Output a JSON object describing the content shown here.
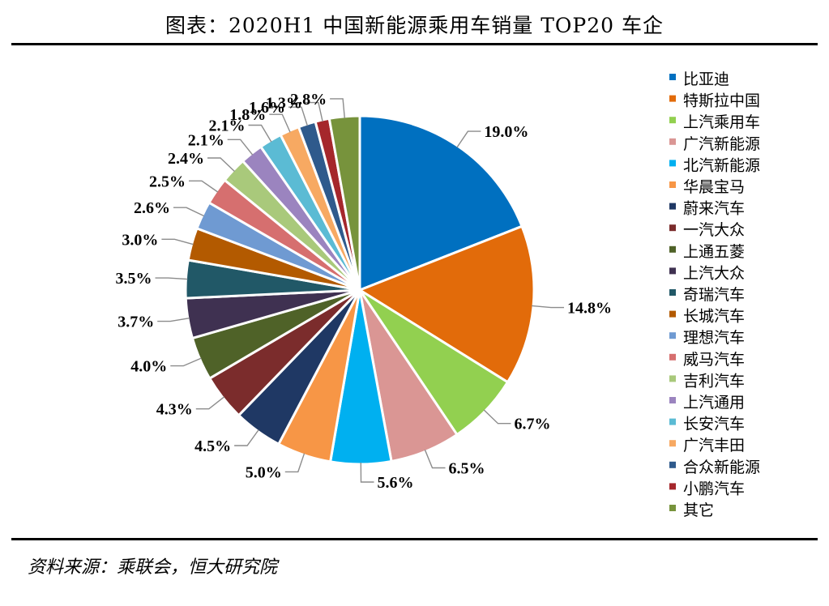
{
  "title": "图表：2020H1 中国新能源乘用车销量 TOP20 车企",
  "source": "资料来源：乘联会，恒大研究院",
  "chart_data": {
    "type": "pie",
    "title": "图表：2020H1 中国新能源乘用车销量 TOP20 车企",
    "unit": "%",
    "legend_position": "right",
    "slices": [
      {
        "name": "比亚迪",
        "value": 19.0,
        "label": "19.0%",
        "color": "#0070C0"
      },
      {
        "name": "特斯拉中国",
        "value": 14.8,
        "label": "14.8%",
        "color": "#E26B0A"
      },
      {
        "name": "上汽乘用车",
        "value": 6.7,
        "label": "6.7%",
        "color": "#92D050"
      },
      {
        "name": "广汽新能源",
        "value": 6.5,
        "label": "6.5%",
        "color": "#DA9694"
      },
      {
        "name": "北汽新能源",
        "value": 5.6,
        "label": "5.6%",
        "color": "#00B0F0"
      },
      {
        "name": "华晨宝马",
        "value": 5.0,
        "label": "5.0%",
        "color": "#F79646"
      },
      {
        "name": "蔚来汽车",
        "value": 4.5,
        "label": "4.5%",
        "color": "#1F3864"
      },
      {
        "name": "一汽大众",
        "value": 4.3,
        "label": "4.3%",
        "color": "#7B2C2C"
      },
      {
        "name": "上通五菱",
        "value": 4.0,
        "label": "4.0%",
        "color": "#4F6228"
      },
      {
        "name": "上汽大众",
        "value": 3.7,
        "label": "3.7%",
        "color": "#3F3151"
      },
      {
        "name": "奇瑞汽车",
        "value": 3.5,
        "label": "3.5%",
        "color": "#215867"
      },
      {
        "name": "长城汽车",
        "value": 3.0,
        "label": "3.0%",
        "color": "#B35A00"
      },
      {
        "name": "理想汽车",
        "value": 2.6,
        "label": "2.6%",
        "color": "#6F9AD2"
      },
      {
        "name": "威马汽车",
        "value": 2.5,
        "label": "2.5%",
        "color": "#D66F6F"
      },
      {
        "name": "吉利汽车",
        "value": 2.4,
        "label": "2.4%",
        "color": "#A9C97B"
      },
      {
        "name": "上汽通用",
        "value": 2.1,
        "label": "2.1%",
        "color": "#9B84BF"
      },
      {
        "name": "长安汽车",
        "value": 2.1,
        "label": "2.1%",
        "color": "#5BBBD4"
      },
      {
        "name": "广汽丰田",
        "value": 1.8,
        "label": "1.8%",
        "color": "#F7A962"
      },
      {
        "name": "合众新能源",
        "value": 1.6,
        "label": "1.6%",
        "color": "#2F5A8C"
      },
      {
        "name": "小鹏汽车",
        "value": 1.3,
        "label": "1.3%",
        "color": "#A5272C"
      },
      {
        "name": "其它",
        "value": 2.8,
        "label": "2.8%",
        "color": "#77933C"
      }
    ]
  }
}
